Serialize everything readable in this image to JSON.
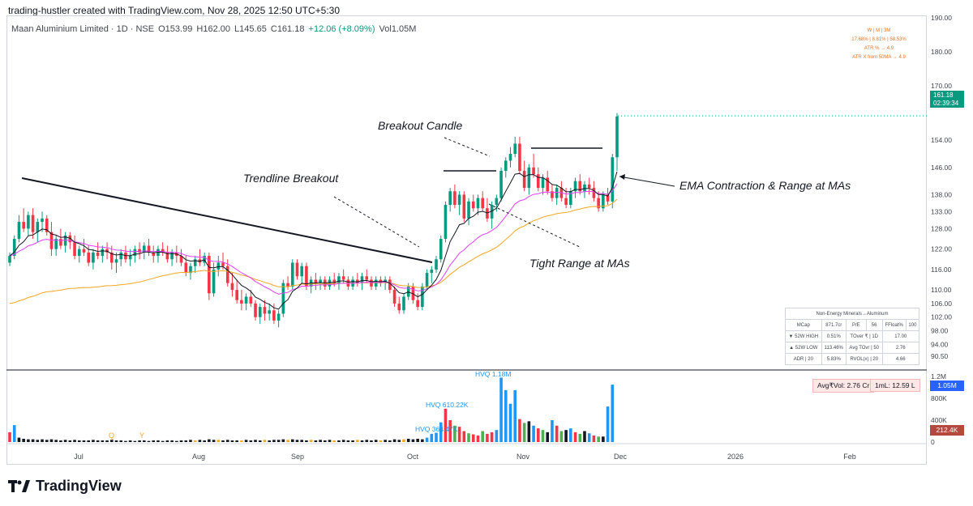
{
  "header": {
    "text": "trading-hustler created with TradingView.com, Nov 28, 2025 12:50 UTC+5:30"
  },
  "legend": {
    "symbol": "Maan Aluminium Limited · 1D · NSE",
    "open": "O153.99",
    "high": "H162.00",
    "low": "L145.65",
    "close": "C161.18",
    "change": "+12.06 (+8.09%)",
    "volume": "Vol1.05M"
  },
  "perf_box": {
    "headers": "W   |   M   |   3M",
    "values": "17.68% | 8.81% | 58.53%",
    "atr": "ATR % → 4.9",
    "atr_x": "ATR X from 50MA → 4.9"
  },
  "price_badge": {
    "price": "161.18",
    "countdown": "02:39:34"
  },
  "volume_badges": {
    "current": "1.05M",
    "ma": "212.4K"
  },
  "volume_pills": {
    "avg_vol": "Avg₹Vol: 2.76 Cr",
    "one_ml": "1mL: 12.59 L"
  },
  "annotations": {
    "breakout_candle": "Breakout Candle",
    "trendline_breakout": "Trendline Breakout",
    "ema_contraction": "EMA Contraction & Range at MAs",
    "tight_range": "Tight Range at MAs"
  },
  "fundamentals": {
    "title": "Non-Energy Minerals→Aluminum",
    "rows": [
      [
        "MCap",
        "871.7cr",
        "P/E",
        "56",
        "FFloat%",
        "100"
      ],
      [
        "▼ 52W HIGH",
        "0.51%",
        "TOver ₹ | 1D",
        "17.00"
      ],
      [
        "▲ 52W LOW",
        "113.46%",
        "Avg TOvr | 50",
        "2.76"
      ],
      [
        "ADR | 20",
        "5.83%",
        "RVOL(x) | 20",
        "4.66"
      ]
    ]
  },
  "logo": {
    "text": "TradingView"
  },
  "colors": {
    "up": "#089981",
    "down": "#f23645",
    "ema_fast": "#131722",
    "ema_mid": "#e040fb",
    "ema_slow": "#f5a623",
    "vol_blue": "#2196f3",
    "vol_red": "#f23645",
    "vol_green": "#4caf50",
    "vol_black": "#131722",
    "vol_orange": "#f5a623"
  },
  "chart_data": {
    "type": "candlestick",
    "x_ticks": [
      "Jul",
      "Aug",
      "Sep",
      "Oct",
      "Nov",
      "Dec",
      "2026",
      "Feb"
    ],
    "y_ticks": [
      "190.00",
      "180.00",
      "170.00",
      "161.18",
      "154.00",
      "146.00",
      "138.00",
      "133.00",
      "128.00",
      "122.00",
      "116.00",
      "110.00",
      "106.00",
      "102.00",
      "98.00",
      "94.00",
      "90.50"
    ],
    "y_ticks_display": [
      "190.00",
      "180.00",
      "170.00",
      "154.00",
      "146.00",
      "138.00",
      "133.00",
      "128.00",
      "122.00",
      "116.00",
      "110.00",
      "106.00",
      "102.00",
      "98.00",
      "94.00",
      "90.50"
    ],
    "volume_ticks": [
      "1.2M",
      "800K",
      "400K",
      "0"
    ],
    "volume_labels": [
      "HVQ 1.18M",
      "HVQ 610.22K",
      "HVQ 364.47K"
    ],
    "event_markers": [
      "Q",
      "Y"
    ],
    "candles_ohlc": [
      [
        118,
        121,
        117,
        120
      ],
      [
        120,
        126,
        119,
        125
      ],
      [
        125,
        132,
        124,
        130
      ],
      [
        130,
        134,
        127,
        128
      ],
      [
        128,
        133,
        126,
        132
      ],
      [
        132,
        134,
        125,
        127
      ],
      [
        127,
        131,
        124,
        130
      ],
      [
        130,
        133,
        127,
        131
      ],
      [
        131,
        132,
        126,
        127
      ],
      [
        127,
        130,
        120,
        122
      ],
      [
        122,
        126,
        120,
        125
      ],
      [
        125,
        128,
        122,
        123
      ],
      [
        123,
        127,
        121,
        126
      ],
      [
        126,
        127,
        122,
        124
      ],
      [
        124,
        126,
        119,
        120
      ],
      [
        120,
        123,
        118,
        122
      ],
      [
        122,
        125,
        120,
        121
      ],
      [
        121,
        123,
        117,
        118
      ],
      [
        118,
        122,
        116,
        121
      ],
      [
        121,
        124,
        119,
        120
      ],
      [
        120,
        123,
        118,
        122
      ],
      [
        122,
        124,
        119,
        121
      ],
      [
        121,
        123,
        116,
        118
      ],
      [
        118,
        121,
        115,
        119
      ],
      [
        119,
        122,
        117,
        121
      ],
      [
        121,
        123,
        118,
        119
      ],
      [
        119,
        122,
        117,
        120
      ],
      [
        120,
        123,
        118,
        122
      ],
      [
        122,
        124,
        119,
        121
      ],
      [
        121,
        124,
        119,
        123
      ],
      [
        123,
        125,
        120,
        121
      ],
      [
        121,
        123,
        118,
        120
      ],
      [
        120,
        123,
        118,
        122
      ],
      [
        122,
        124,
        120,
        121
      ],
      [
        121,
        123,
        118,
        119
      ],
      [
        119,
        122,
        117,
        121
      ],
      [
        121,
        123,
        118,
        120
      ],
      [
        120,
        122,
        117,
        118
      ],
      [
        118,
        120,
        114,
        115
      ],
      [
        115,
        118,
        113,
        117
      ],
      [
        117,
        120,
        115,
        119
      ],
      [
        119,
        122,
        117,
        118
      ],
      [
        118,
        121,
        117,
        120
      ],
      [
        120,
        121,
        107,
        109
      ],
      [
        109,
        118,
        108,
        116
      ],
      [
        116,
        120,
        114,
        118
      ],
      [
        118,
        121,
        116,
        117
      ],
      [
        117,
        119,
        111,
        112
      ],
      [
        112,
        115,
        108,
        110
      ],
      [
        110,
        113,
        106,
        107
      ],
      [
        107,
        110,
        104,
        106
      ],
      [
        106,
        109,
        104,
        108
      ],
      [
        108,
        110,
        105,
        106
      ],
      [
        106,
        107,
        101,
        102
      ],
      [
        102,
        106,
        100,
        105
      ],
      [
        105,
        107,
        101,
        103
      ],
      [
        103,
        106,
        101,
        104
      ],
      [
        104,
        106,
        100,
        101
      ],
      [
        101,
        104,
        99,
        103
      ],
      [
        103,
        113,
        102,
        112
      ],
      [
        112,
        114,
        110,
        111
      ],
      [
        111,
        119,
        110,
        118
      ],
      [
        118,
        119,
        113,
        114
      ],
      [
        114,
        118,
        112,
        117
      ],
      [
        117,
        118,
        110,
        111
      ],
      [
        111,
        114,
        109,
        113
      ],
      [
        113,
        115,
        110,
        112
      ],
      [
        112,
        114,
        110,
        113
      ],
      [
        113,
        114,
        110,
        111
      ],
      [
        111,
        114,
        110,
        113
      ],
      [
        113,
        115,
        111,
        112
      ],
      [
        112,
        115,
        110,
        114
      ],
      [
        114,
        116,
        112,
        113
      ],
      [
        113,
        114,
        110,
        111
      ],
      [
        111,
        114,
        110,
        113
      ],
      [
        113,
        115,
        111,
        112
      ],
      [
        112,
        115,
        110,
        114
      ],
      [
        114,
        116,
        112,
        113
      ],
      [
        113,
        114,
        110,
        111
      ],
      [
        111,
        114,
        110,
        113
      ],
      [
        113,
        114,
        111,
        112
      ],
      [
        112,
        114,
        110,
        113
      ],
      [
        113,
        114,
        109,
        110
      ],
      [
        110,
        111,
        105,
        106
      ],
      [
        106,
        108,
        103,
        104
      ],
      [
        104,
        109,
        103,
        108
      ],
      [
        108,
        112,
        107,
        111
      ],
      [
        111,
        112,
        106,
        107
      ],
      [
        107,
        109,
        104,
        105
      ],
      [
        105,
        112,
        104,
        111
      ],
      [
        111,
        116,
        110,
        115
      ],
      [
        115,
        117,
        112,
        116
      ],
      [
        116,
        120,
        115,
        119
      ],
      [
        119,
        126,
        118,
        125
      ],
      [
        125,
        136,
        124,
        135
      ],
      [
        135,
        140,
        133,
        139
      ],
      [
        139,
        141,
        134,
        135
      ],
      [
        135,
        139,
        132,
        138
      ],
      [
        138,
        139,
        130,
        131
      ],
      [
        131,
        137,
        129,
        136
      ],
      [
        136,
        138,
        133,
        134
      ],
      [
        134,
        138,
        132,
        137
      ],
      [
        137,
        139,
        133,
        134
      ],
      [
        134,
        137,
        130,
        131
      ],
      [
        131,
        136,
        128,
        135
      ],
      [
        135,
        138,
        133,
        137
      ],
      [
        137,
        146,
        136,
        145
      ],
      [
        145,
        149,
        143,
        148
      ],
      [
        148,
        152,
        146,
        150
      ],
      [
        150,
        155,
        149,
        153
      ],
      [
        153,
        155,
        144,
        145
      ],
      [
        145,
        148,
        139,
        140
      ],
      [
        140,
        147,
        138,
        146
      ],
      [
        146,
        150,
        143,
        144
      ],
      [
        144,
        146,
        139,
        140
      ],
      [
        140,
        144,
        138,
        143
      ],
      [
        143,
        145,
        138,
        139
      ],
      [
        139,
        141,
        136,
        137
      ],
      [
        137,
        141,
        135,
        140
      ],
      [
        140,
        142,
        136,
        137
      ],
      [
        137,
        140,
        134,
        135
      ],
      [
        135,
        140,
        134,
        139
      ],
      [
        139,
        143,
        137,
        142
      ],
      [
        142,
        144,
        138,
        139
      ],
      [
        139,
        142,
        137,
        141
      ],
      [
        141,
        143,
        138,
        140
      ],
      [
        140,
        142,
        136,
        137
      ],
      [
        137,
        139,
        133,
        134
      ],
      [
        134,
        139,
        133,
        138
      ],
      [
        138,
        140,
        135,
        136
      ],
      [
        136,
        150,
        134,
        149
      ],
      [
        149,
        162,
        145,
        161
      ]
    ],
    "volume_values": [
      0.18,
      0.31,
      0.08,
      0.06,
      0.05,
      0.05,
      0.04,
      0.05,
      0.04,
      0.05,
      0.04,
      0.03,
      0.04,
      0.03,
      0.04,
      0.03,
      0.03,
      0.03,
      0.04,
      0.03,
      0.03,
      0.03,
      0.04,
      0.03,
      0.03,
      0.02,
      0.03,
      0.02,
      0.03,
      0.03,
      0.02,
      0.03,
      0.03,
      0.02,
      0.03,
      0.03,
      0.02,
      0.03,
      0.03,
      0.04,
      0.03,
      0.04,
      0.03,
      0.05,
      0.04,
      0.04,
      0.03,
      0.04,
      0.03,
      0.03,
      0.03,
      0.04,
      0.03,
      0.04,
      0.03,
      0.04,
      0.03,
      0.04,
      0.04,
      0.05,
      0.04,
      0.05,
      0.04,
      0.04,
      0.03,
      0.04,
      0.03,
      0.04,
      0.03,
      0.04,
      0.03,
      0.03,
      0.04,
      0.03,
      0.03,
      0.04,
      0.03,
      0.04,
      0.03,
      0.04,
      0.03,
      0.04,
      0.03,
      0.05,
      0.04,
      0.05,
      0.06,
      0.05,
      0.06,
      0.05,
      0.08,
      0.15,
      0.17,
      0.36,
      0.61,
      0.4,
      0.3,
      0.28,
      0.2,
      0.16,
      0.14,
      0.12,
      0.2,
      0.15,
      0.18,
      0.22,
      1.18,
      0.95,
      0.7,
      0.95,
      0.42,
      0.35,
      0.38,
      0.3,
      0.25,
      0.22,
      0.18,
      0.4,
      0.3,
      0.2,
      0.22,
      0.25,
      0.18,
      0.15,
      0.2,
      0.16,
      0.12,
      0.1,
      0.1,
      0.65,
      1.05
    ]
  }
}
